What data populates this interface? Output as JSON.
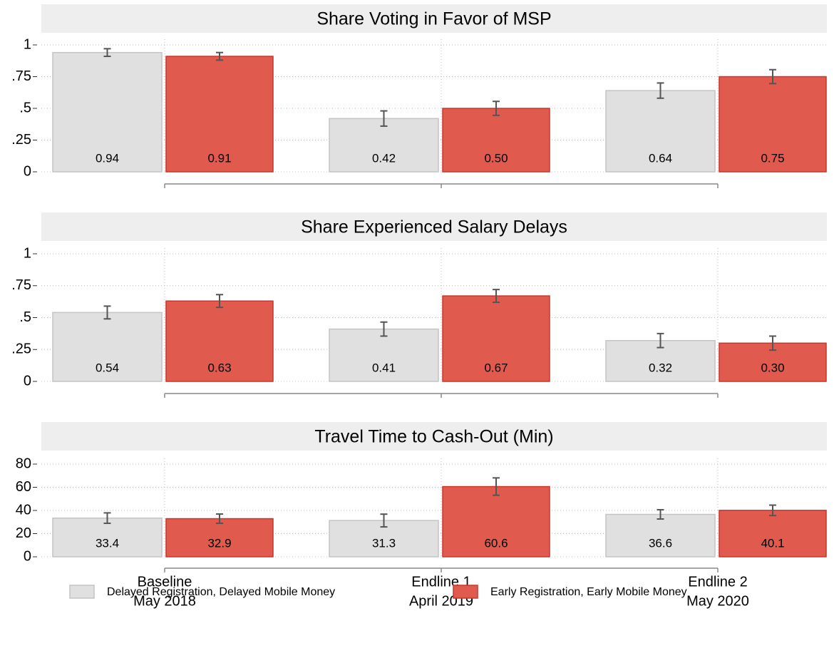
{
  "chart_data": [
    {
      "type": "bar",
      "title": "Share Voting in Favor of MSP",
      "ylim": [
        0,
        1
      ],
      "yticks": [
        0,
        {
          "value": 0.25,
          "label": ".25"
        },
        {
          "value": 0.5,
          "label": ".5"
        },
        {
          "value": 0.75,
          "label": ".75"
        },
        1
      ],
      "grid": true,
      "series": [
        {
          "color": "#e0e0e0",
          "values": [
            0.94,
            0.42,
            0.64
          ],
          "value_labels": [
            "0.94",
            "0.42",
            "0.64"
          ],
          "errors": [
            0.03,
            0.06,
            0.06
          ]
        },
        {
          "color": "#e05a4e",
          "values": [
            0.91,
            0.5,
            0.75
          ],
          "value_labels": [
            "0.91",
            "0.50",
            "0.75"
          ],
          "errors": [
            0.03,
            0.055,
            0.055
          ]
        }
      ]
    },
    {
      "type": "bar",
      "title": "Share Experienced Salary Delays",
      "ylim": [
        0,
        1
      ],
      "yticks": [
        0,
        {
          "value": 0.25,
          "label": ".25"
        },
        {
          "value": 0.5,
          "label": ".5"
        },
        {
          "value": 0.75,
          "label": ".75"
        },
        1
      ],
      "grid": true,
      "series": [
        {
          "color": "#e0e0e0",
          "values": [
            0.54,
            0.41,
            0.32
          ],
          "value_labels": [
            "0.54",
            "0.41",
            "0.32"
          ],
          "errors": [
            0.05,
            0.055,
            0.055
          ]
        },
        {
          "color": "#e05a4e",
          "values": [
            0.63,
            0.67,
            0.3
          ],
          "value_labels": [
            "0.63",
            "0.67",
            "0.30"
          ],
          "errors": [
            0.05,
            0.05,
            0.055
          ]
        }
      ]
    },
    {
      "type": "bar",
      "title": "Travel Time to Cash-Out (Min)",
      "categories": [
        [
          "Baseline",
          "May 2018"
        ],
        [
          "Endline 1",
          "April 2019"
        ],
        [
          "Endline 2",
          "May 2020"
        ]
      ],
      "ylim": [
        0,
        80
      ],
      "yticks": [
        0,
        20,
        40,
        60,
        80
      ],
      "grid": true,
      "series": [
        {
          "name": "Delayed Registration, Delayed Mobile Money",
          "color": "#e0e0e0",
          "values": [
            33.4,
            31.3,
            36.6
          ],
          "errors": [
            4.5,
            5.5,
            4
          ]
        },
        {
          "name": "Early Registration, Early Mobile Money",
          "color": "#e05a4e",
          "values": [
            32.9,
            60.6,
            40.1
          ],
          "errors": [
            4,
            7.5,
            4.5
          ]
        }
      ]
    }
  ]
}
